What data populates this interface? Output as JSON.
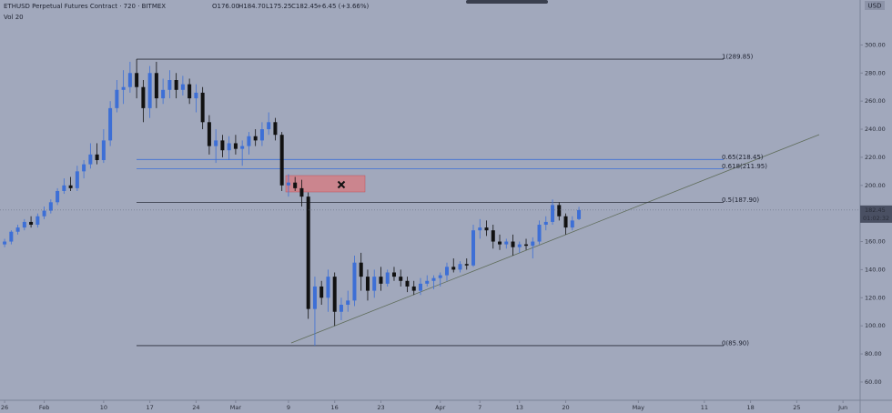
{
  "chart_data": {
    "type": "candlestick",
    "title": "ETHUSD Perpetual Futures Contract · 720 · BITMEX",
    "ohlc_labels": [
      "O176.00",
      "H184.70",
      "L175.25",
      "C182.45",
      "+6.45 (+3.66%)"
    ],
    "indicator": "Vol 20",
    "currency": "USD",
    "countdown": "01:02:32",
    "last_price": {
      "value": 182.45,
      "label": "182.45"
    },
    "up_color": "#3d6fd6",
    "down_color": "#111111",
    "x": [
      0,
      1,
      2,
      3,
      4,
      5,
      6,
      7,
      8,
      9,
      10,
      11,
      12,
      13,
      14,
      15,
      16,
      17,
      18,
      19,
      20,
      21,
      22,
      23,
      24,
      25,
      26,
      27,
      28,
      29,
      30,
      31,
      32,
      33,
      34,
      35,
      36,
      37,
      38,
      39,
      40,
      41,
      42,
      43,
      44,
      45,
      46,
      47,
      48,
      49,
      50,
      51,
      52,
      53,
      54,
      55,
      56,
      57,
      58,
      59,
      60,
      61,
      62,
      63,
      64,
      65,
      66,
      67,
      68,
      69,
      70,
      71,
      72,
      73,
      74,
      75,
      76,
      77,
      78,
      79,
      80,
      81,
      82,
      83,
      84,
      85,
      86,
      87
    ],
    "open": [
      158,
      160,
      167,
      170,
      174,
      172,
      178,
      182,
      188,
      196,
      200,
      198,
      210,
      215,
      222,
      218,
      232,
      255,
      268,
      270,
      280,
      270,
      255,
      280,
      262,
      268,
      275,
      268,
      272,
      262,
      266,
      245,
      228,
      232,
      225,
      230,
      226,
      228,
      235,
      232,
      240,
      245,
      236,
      200,
      202,
      198,
      192,
      112,
      128,
      120,
      135,
      110,
      115,
      118,
      145,
      135,
      125,
      135,
      130,
      138,
      135,
      132,
      128,
      125,
      130,
      132,
      134,
      136,
      142,
      140,
      144,
      143,
      168,
      170,
      168,
      160,
      158,
      160,
      156,
      158,
      157,
      160,
      172,
      174,
      186,
      178,
      170,
      176
    ],
    "high": [
      162,
      168,
      172,
      176,
      178,
      180,
      185,
      190,
      198,
      205,
      206,
      214,
      218,
      230,
      230,
      240,
      260,
      275,
      282,
      288,
      289.85,
      275,
      285,
      288,
      276,
      282,
      280,
      278,
      276,
      272,
      270,
      250,
      240,
      236,
      235,
      236,
      232,
      238,
      240,
      245,
      252,
      248,
      238,
      208,
      206,
      204,
      195,
      135,
      132,
      140,
      138,
      120,
      125,
      150,
      152,
      140,
      140,
      142,
      140,
      142,
      140,
      135,
      132,
      134,
      136,
      136,
      138,
      145,
      148,
      146,
      148,
      172,
      176,
      175,
      172,
      165,
      162,
      165,
      160,
      162,
      163,
      175,
      178,
      190,
      188,
      180,
      178,
      184.7
    ],
    "low": [
      156,
      158,
      165,
      168,
      170,
      170,
      176,
      180,
      186,
      194,
      196,
      196,
      205,
      212,
      215,
      216,
      228,
      252,
      258,
      266,
      262,
      245,
      248,
      255,
      258,
      262,
      262,
      264,
      258,
      252,
      240,
      222,
      216,
      220,
      218,
      222,
      214,
      222,
      228,
      228,
      236,
      232,
      196,
      192,
      196,
      185,
      105,
      85.9,
      115,
      110,
      100,
      104,
      110,
      114,
      125,
      118,
      120,
      125,
      128,
      132,
      128,
      124,
      122,
      122,
      128,
      126,
      128,
      132,
      138,
      138,
      140,
      142,
      162,
      164,
      155,
      154,
      155,
      150,
      152,
      154,
      148,
      158,
      168,
      172,
      175,
      165,
      168,
      175.25
    ],
    "close": [
      160,
      167,
      170,
      174,
      172,
      178,
      182,
      188,
      196,
      200,
      198,
      210,
      215,
      222,
      218,
      232,
      255,
      268,
      270,
      280,
      270,
      255,
      280,
      262,
      268,
      275,
      268,
      272,
      262,
      266,
      245,
      228,
      232,
      225,
      230,
      226,
      228,
      235,
      232,
      240,
      245,
      236,
      200,
      202,
      198,
      192,
      112,
      128,
      120,
      135,
      110,
      115,
      118,
      145,
      135,
      125,
      135,
      130,
      138,
      135,
      132,
      128,
      125,
      130,
      132,
      134,
      136,
      142,
      140,
      144,
      143,
      168,
      170,
      168,
      160,
      158,
      160,
      156,
      158,
      157,
      160,
      172,
      174,
      186,
      178,
      170,
      175,
      182.45
    ],
    "fib_levels": [
      {
        "value": 289.85,
        "label": "1(289.85)",
        "color": "#2a2e3a"
      },
      {
        "value": 218.45,
        "label": "0.65(218.45)",
        "color": "#3d6fd6"
      },
      {
        "value": 211.95,
        "label": "0.618(211.95)",
        "color": "#3d6fd6"
      },
      {
        "value": 187.9,
        "label": "0.5(187.90)",
        "color": "#2a2e3a"
      },
      {
        "value": 85.9,
        "label": "0(85.90)",
        "color": "#2a2e3a"
      }
    ],
    "ylim": [
      47,
      332
    ],
    "yticks": [
      {
        "value": 60,
        "label": "60.00"
      },
      {
        "value": 80,
        "label": "80.00"
      },
      {
        "value": 100,
        "label": "100.00"
      },
      {
        "value": 120,
        "label": "120.00"
      },
      {
        "value": 140,
        "label": "140.00"
      },
      {
        "value": 160,
        "label": "160.00"
      },
      {
        "value": 180,
        "label": "180.00"
      },
      {
        "value": 200,
        "label": "200.00"
      },
      {
        "value": 220,
        "label": "220.00"
      },
      {
        "value": 240,
        "label": "240.00"
      },
      {
        "value": 260,
        "label": "260.00"
      },
      {
        "value": 280,
        "label": "280.00"
      },
      {
        "value": 300,
        "label": "300.00"
      }
    ],
    "xlim": [
      -0.7,
      129.6
    ],
    "xticks": [
      {
        "value": 0,
        "label": "26"
      },
      {
        "value": 6,
        "label": "Feb"
      },
      {
        "value": 15,
        "label": "10"
      },
      {
        "value": 22,
        "label": "17"
      },
      {
        "value": 29,
        "label": "24"
      },
      {
        "value": 35,
        "label": "Mar"
      },
      {
        "value": 43,
        "label": "9"
      },
      {
        "value": 50,
        "label": "16"
      },
      {
        "value": 57,
        "label": "23"
      },
      {
        "value": 66,
        "label": "Apr"
      },
      {
        "value": 72,
        "label": "7"
      },
      {
        "value": 78,
        "label": "13"
      },
      {
        "value": 85,
        "label": "20"
      },
      {
        "value": 96,
        "label": "May"
      },
      {
        "value": 106,
        "label": "11"
      },
      {
        "value": 113,
        "label": "18"
      },
      {
        "value": 120,
        "label": "25"
      },
      {
        "value": 127,
        "label": "Jun"
      }
    ]
  }
}
